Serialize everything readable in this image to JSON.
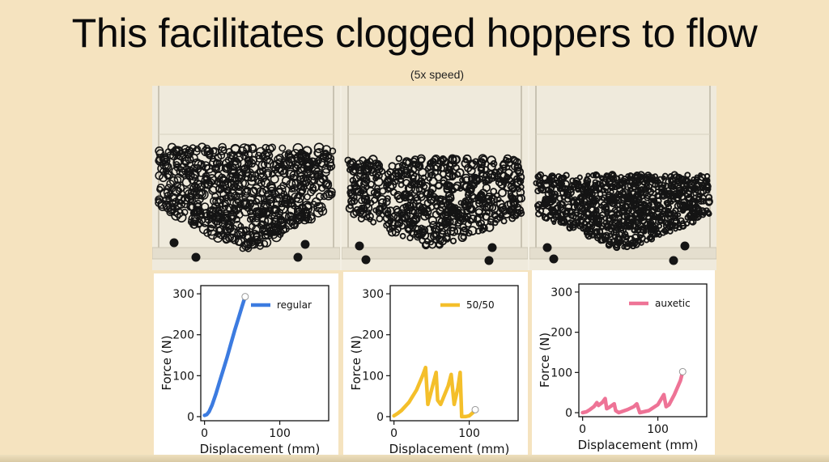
{
  "slide": {
    "title": "This facilitates clogged hoppers to flow",
    "subtitle": "(5x speed)"
  },
  "photos": [
    {
      "material": "regular"
    },
    {
      "material": "50/50"
    },
    {
      "material": "auxetic"
    }
  ],
  "colors": {
    "background": "#f5e3bf",
    "regular": "#3c7be0",
    "fifty": "#f4bf2a",
    "auxetic": "#ee7396"
  },
  "chart_data": [
    {
      "type": "line",
      "xlabel": "Displacement (mm)",
      "ylabel": "Force (N)",
      "xlim": [
        -5,
        165
      ],
      "ylim": [
        -10,
        320
      ],
      "xticks": [
        0,
        100
      ],
      "yticks": [
        0,
        100,
        200,
        300
      ],
      "legend": "top-right",
      "series": [
        {
          "name": "regular",
          "color": "#3c7be0",
          "x": [
            0,
            3,
            6,
            10,
            15,
            20,
            25,
            30,
            35,
            40,
            45,
            50,
            54
          ],
          "y": [
            3,
            5,
            12,
            28,
            55,
            85,
            115,
            145,
            178,
            210,
            240,
            270,
            293
          ]
        }
      ],
      "end_marker": {
        "x": 54,
        "y": 293
      }
    },
    {
      "type": "line",
      "xlabel": "Displacement (mm)",
      "ylabel": "Force (N)",
      "xlim": [
        -5,
        165
      ],
      "ylim": [
        -10,
        320
      ],
      "xticks": [
        0,
        100
      ],
      "yticks": [
        0,
        100,
        200,
        300
      ],
      "legend": "top-right",
      "series": [
        {
          "name": "50/50",
          "color": "#f4bf2a",
          "x": [
            0,
            5,
            10,
            20,
            30,
            38,
            42,
            45,
            52,
            56,
            58,
            62,
            72,
            76,
            80,
            85,
            88,
            90,
            95,
            100,
            105,
            108
          ],
          "y": [
            2,
            8,
            15,
            35,
            65,
            100,
            120,
            30,
            80,
            108,
            40,
            30,
            75,
            103,
            30,
            70,
            108,
            0,
            0,
            2,
            10,
            17
          ]
        }
      ],
      "end_marker": {
        "x": 108,
        "y": 17
      }
    },
    {
      "type": "line",
      "xlabel": "Displacement (mm)",
      "ylabel": "Force (N)",
      "xlim": [
        -5,
        165
      ],
      "ylim": [
        -10,
        320
      ],
      "xticks": [
        0,
        100
      ],
      "yticks": [
        0,
        100,
        200,
        300
      ],
      "legend": "top-right",
      "series": [
        {
          "name": "auxetic",
          "color": "#ee7396",
          "x": [
            0,
            5,
            10,
            15,
            19,
            21,
            26,
            30,
            32,
            36,
            42,
            44,
            48,
            60,
            68,
            72,
            76,
            88,
            100,
            108,
            111,
            115,
            122,
            130,
            133
          ],
          "y": [
            0,
            2,
            8,
            15,
            25,
            18,
            25,
            35,
            10,
            14,
            22,
            5,
            0,
            8,
            15,
            22,
            0,
            5,
            20,
            45,
            15,
            20,
            45,
            80,
            102
          ]
        }
      ],
      "end_marker": {
        "x": 133,
        "y": 102
      }
    }
  ]
}
